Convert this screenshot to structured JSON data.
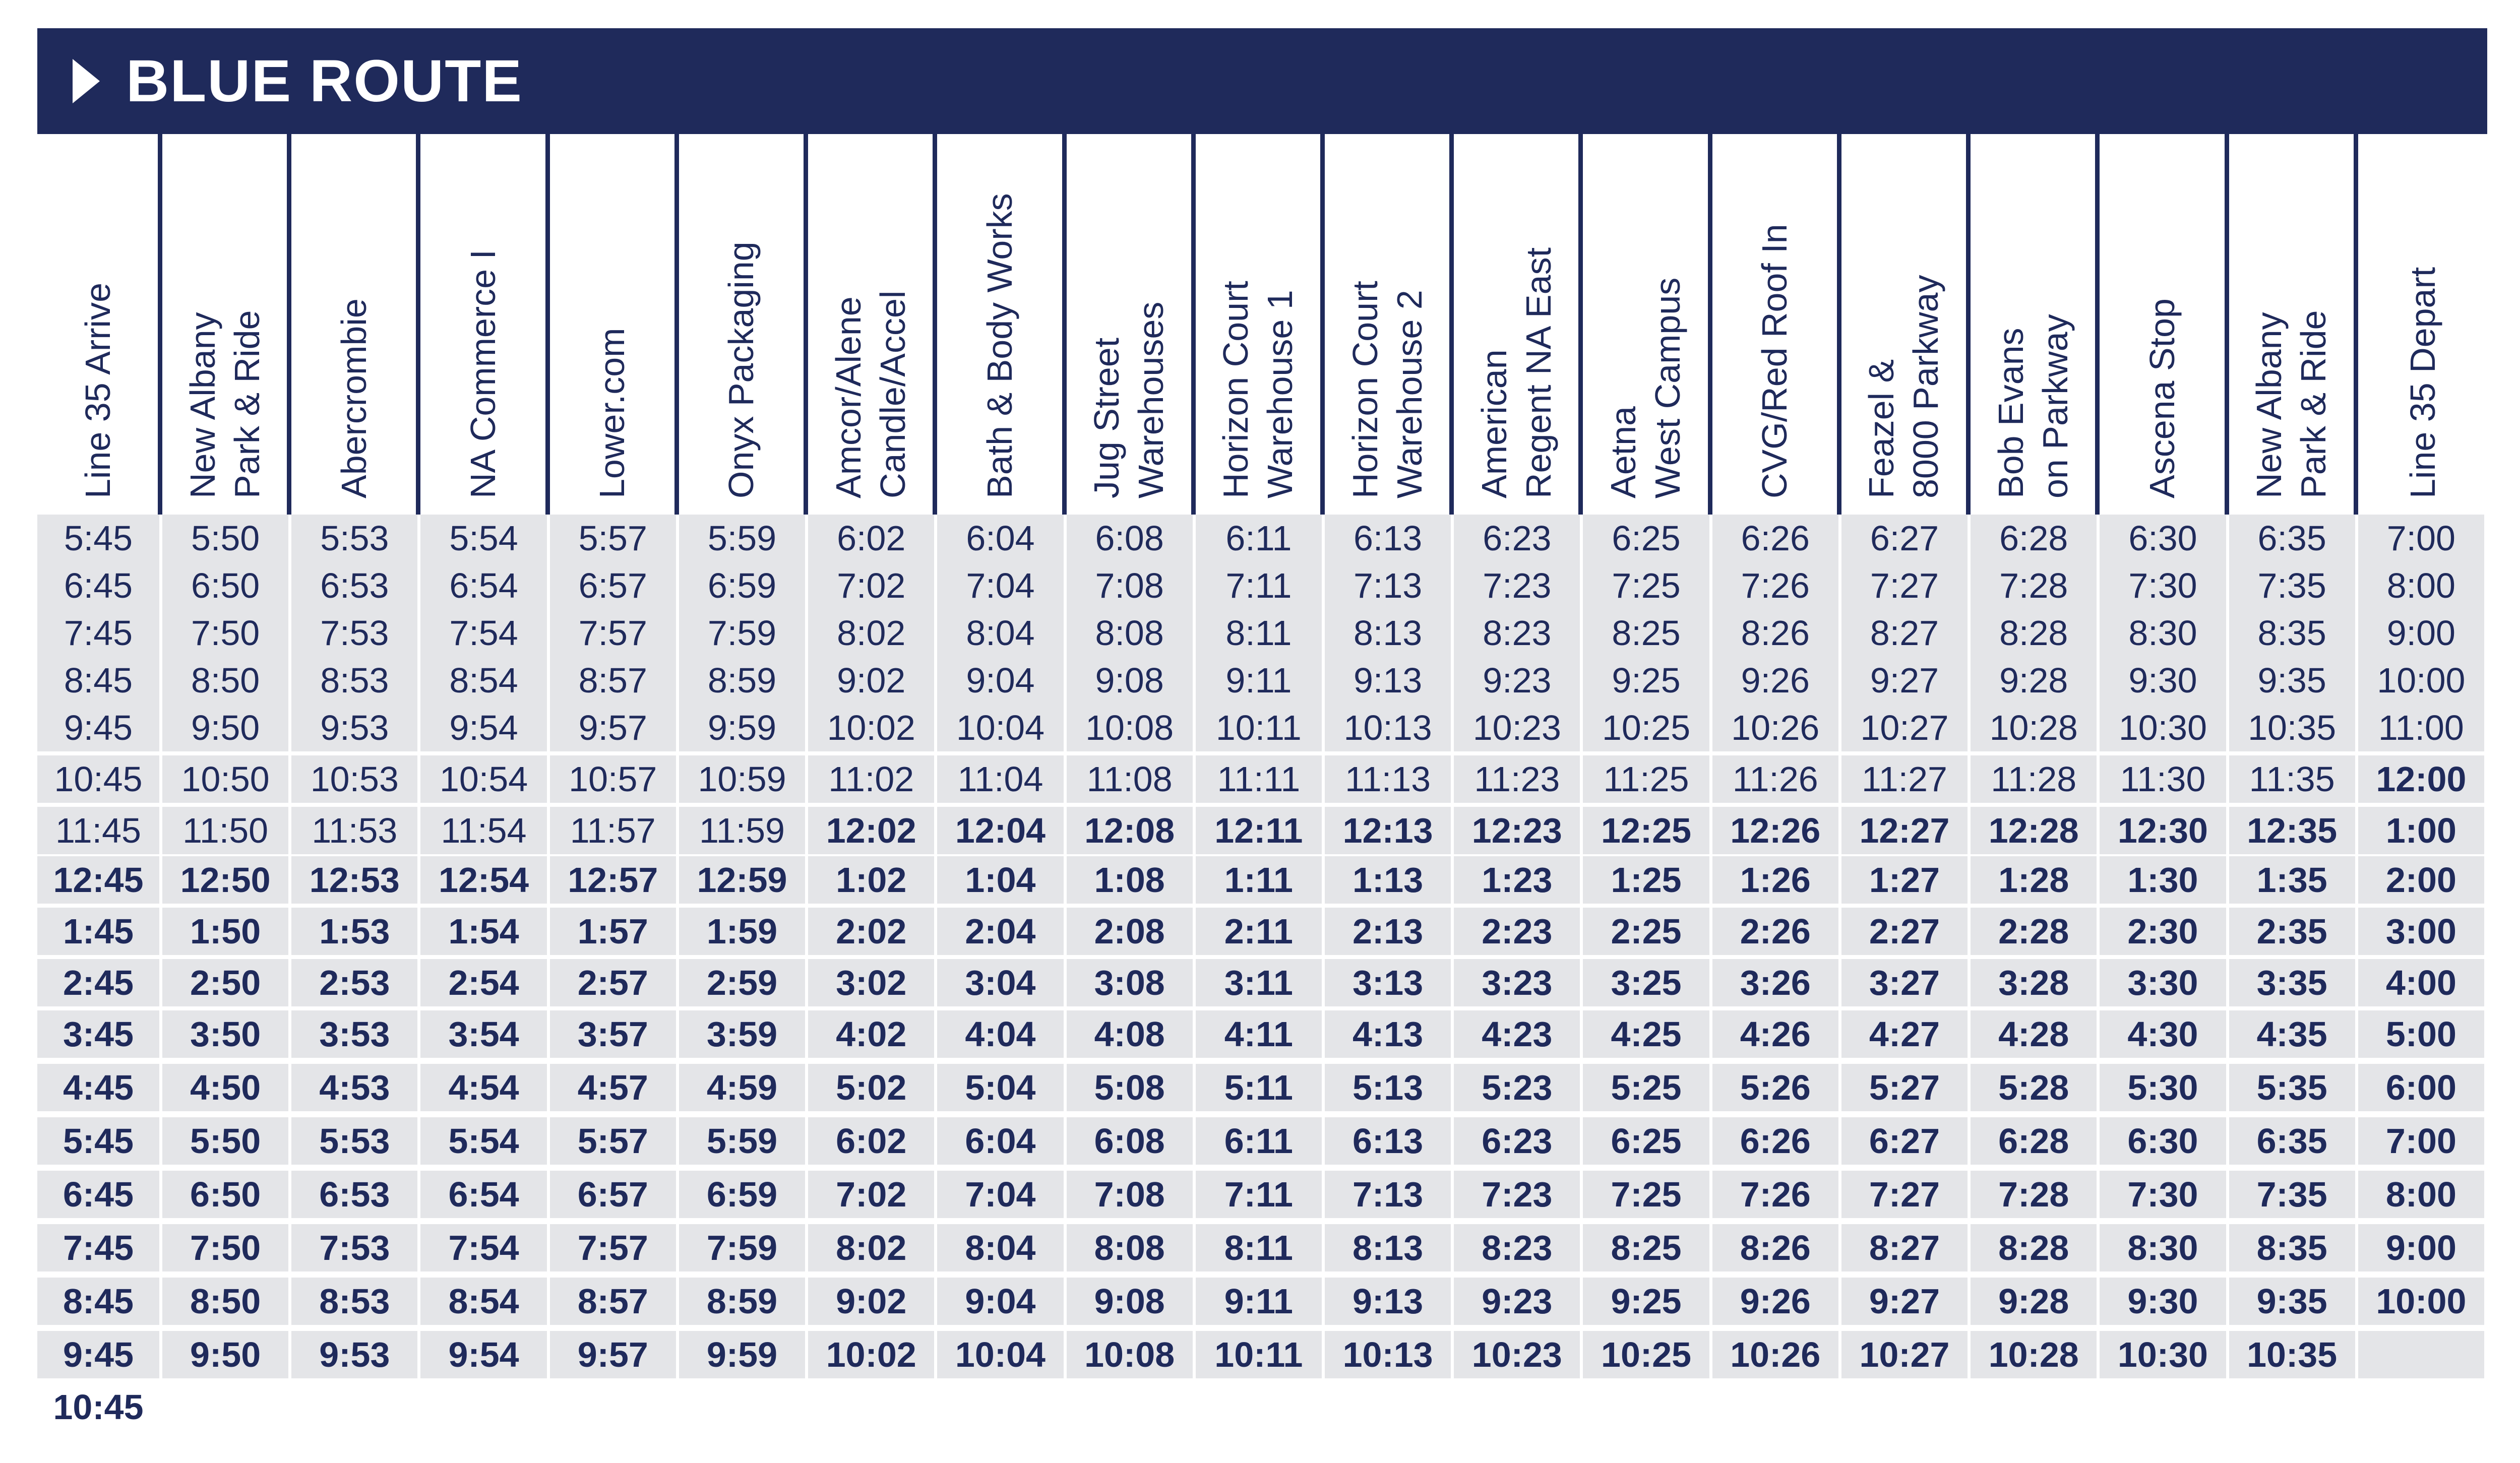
{
  "title": "BLUE ROUTE",
  "colors": {
    "navy": "#1f2a5b",
    "shade": "#e4e5e8"
  },
  "columns": [
    [
      "Line 35 Arrive"
    ],
    [
      "New Albany",
      "Park & Ride"
    ],
    [
      "Abercrombie"
    ],
    [
      "NA Commerce I"
    ],
    [
      "Lower.com"
    ],
    [
      "Onyx Packaging"
    ],
    [
      "Amcor/Alene",
      "Candle/Accel"
    ],
    [
      "Bath & Body Works"
    ],
    [
      "Jug Street",
      "Warehouses"
    ],
    [
      "Horizon Court",
      "Warehouse 1"
    ],
    [
      "Horizon Court",
      "Warehouse 2"
    ],
    [
      "American",
      "Regent NA East"
    ],
    [
      "Aetna",
      "West Campus"
    ],
    [
      "CVG/Red Roof In"
    ],
    [
      "Feazel &",
      "8000 Parkway"
    ],
    [
      "Bob Evans",
      "on Parkway"
    ],
    [
      "Ascena Stop"
    ],
    [
      "New Albany",
      "Park & Ride"
    ],
    [
      "Line 35 Depart"
    ]
  ],
  "rows": [
    [
      "5:45",
      "5:50",
      "5:53",
      "5:54",
      "5:57",
      "5:59",
      "6:02",
      "6:04",
      "6:08",
      "6:11",
      "6:13",
      "6:23",
      "6:25",
      "6:26",
      "6:27",
      "6:28",
      "6:30",
      "6:35",
      "7:00"
    ],
    [
      "6:45",
      "6:50",
      "6:53",
      "6:54",
      "6:57",
      "6:59",
      "7:02",
      "7:04",
      "7:08",
      "7:11",
      "7:13",
      "7:23",
      "7:25",
      "7:26",
      "7:27",
      "7:28",
      "7:30",
      "7:35",
      "8:00"
    ],
    [
      "7:45",
      "7:50",
      "7:53",
      "7:54",
      "7:57",
      "7:59",
      "8:02",
      "8:04",
      "8:08",
      "8:11",
      "8:13",
      "8:23",
      "8:25",
      "8:26",
      "8:27",
      "8:28",
      "8:30",
      "8:35",
      "9:00"
    ],
    [
      "8:45",
      "8:50",
      "8:53",
      "8:54",
      "8:57",
      "8:59",
      "9:02",
      "9:04",
      "9:08",
      "9:11",
      "9:13",
      "9:23",
      "9:25",
      "9:26",
      "9:27",
      "9:28",
      "9:30",
      "9:35",
      "10:00"
    ],
    [
      "9:45",
      "9:50",
      "9:53",
      "9:54",
      "9:57",
      "9:59",
      "10:02",
      "10:04",
      "10:08",
      "10:11",
      "10:13",
      "10:23",
      "10:25",
      "10:26",
      "10:27",
      "10:28",
      "10:30",
      "10:35",
      "11:00"
    ],
    [
      "10:45",
      "10:50",
      "10:53",
      "10:54",
      "10:57",
      "10:59",
      "11:02",
      "11:04",
      "11:08",
      "11:11",
      "11:13",
      "11:23",
      "11:25",
      "11:26",
      "11:27",
      "11:28",
      "11:30",
      "11:35",
      "12:00"
    ],
    [
      "11:45",
      "11:50",
      "11:53",
      "11:54",
      "11:57",
      "11:59",
      "12:02",
      "12:04",
      "12:08",
      "12:11",
      "12:13",
      "12:23",
      "12:25",
      "12:26",
      "12:27",
      "12:28",
      "12:30",
      "12:35",
      "1:00"
    ],
    [
      "12:45",
      "12:50",
      "12:53",
      "12:54",
      "12:57",
      "12:59",
      "1:02",
      "1:04",
      "1:08",
      "1:11",
      "1:13",
      "1:23",
      "1:25",
      "1:26",
      "1:27",
      "1:28",
      "1:30",
      "1:35",
      "2:00"
    ],
    [
      "1:45",
      "1:50",
      "1:53",
      "1:54",
      "1:57",
      "1:59",
      "2:02",
      "2:04",
      "2:08",
      "2:11",
      "2:13",
      "2:23",
      "2:25",
      "2:26",
      "2:27",
      "2:28",
      "2:30",
      "2:35",
      "3:00"
    ],
    [
      "2:45",
      "2:50",
      "2:53",
      "2:54",
      "2:57",
      "2:59",
      "3:02",
      "3:04",
      "3:08",
      "3:11",
      "3:13",
      "3:23",
      "3:25",
      "3:26",
      "3:27",
      "3:28",
      "3:30",
      "3:35",
      "4:00"
    ],
    [
      "3:45",
      "3:50",
      "3:53",
      "3:54",
      "3:57",
      "3:59",
      "4:02",
      "4:04",
      "4:08",
      "4:11",
      "4:13",
      "4:23",
      "4:25",
      "4:26",
      "4:27",
      "4:28",
      "4:30",
      "4:35",
      "5:00"
    ],
    [
      "4:45",
      "4:50",
      "4:53",
      "4:54",
      "4:57",
      "4:59",
      "5:02",
      "5:04",
      "5:08",
      "5:11",
      "5:13",
      "5:23",
      "5:25",
      "5:26",
      "5:27",
      "5:28",
      "5:30",
      "5:35",
      "6:00"
    ],
    [
      "5:45",
      "5:50",
      "5:53",
      "5:54",
      "5:57",
      "5:59",
      "6:02",
      "6:04",
      "6:08",
      "6:11",
      "6:13",
      "6:23",
      "6:25",
      "6:26",
      "6:27",
      "6:28",
      "6:30",
      "6:35",
      "7:00"
    ],
    [
      "6:45",
      "6:50",
      "6:53",
      "6:54",
      "6:57",
      "6:59",
      "7:02",
      "7:04",
      "7:08",
      "7:11",
      "7:13",
      "7:23",
      "7:25",
      "7:26",
      "7:27",
      "7:28",
      "7:30",
      "7:35",
      "8:00"
    ],
    [
      "7:45",
      "7:50",
      "7:53",
      "7:54",
      "7:57",
      "7:59",
      "8:02",
      "8:04",
      "8:08",
      "8:11",
      "8:13",
      "8:23",
      "8:25",
      "8:26",
      "8:27",
      "8:28",
      "8:30",
      "8:35",
      "9:00"
    ],
    [
      "8:45",
      "8:50",
      "8:53",
      "8:54",
      "8:57",
      "8:59",
      "9:02",
      "9:04",
      "9:08",
      "9:11",
      "9:13",
      "9:23",
      "9:25",
      "9:26",
      "9:27",
      "9:28",
      "9:30",
      "9:35",
      "10:00"
    ],
    [
      "9:45",
      "9:50",
      "9:53",
      "9:54",
      "9:57",
      "9:59",
      "10:02",
      "10:04",
      "10:08",
      "10:11",
      "10:13",
      "10:23",
      "10:25",
      "10:26",
      "10:27",
      "10:28",
      "10:30",
      "10:35",
      ""
    ],
    [
      "10:45",
      "",
      "",
      "",
      "",
      "",
      "",
      "",
      "",
      "",
      "",
      "",
      "",
      "",
      "",
      "",
      "",
      "",
      ""
    ]
  ],
  "bold_rows": [
    [
      false,
      false,
      false,
      false,
      false,
      false,
      false,
      false,
      false,
      false,
      false,
      false,
      false,
      false,
      false,
      false,
      false,
      false,
      false
    ],
    [
      false,
      false,
      false,
      false,
      false,
      false,
      false,
      false,
      false,
      false,
      false,
      false,
      false,
      false,
      false,
      false,
      false,
      false,
      false
    ],
    [
      false,
      false,
      false,
      false,
      false,
      false,
      false,
      false,
      false,
      false,
      false,
      false,
      false,
      false,
      false,
      false,
      false,
      false,
      false
    ],
    [
      false,
      false,
      false,
      false,
      false,
      false,
      false,
      false,
      false,
      false,
      false,
      false,
      false,
      false,
      false,
      false,
      false,
      false,
      false
    ],
    [
      false,
      false,
      false,
      false,
      false,
      false,
      false,
      false,
      false,
      false,
      false,
      false,
      false,
      false,
      false,
      false,
      false,
      false,
      false
    ],
    [
      false,
      false,
      false,
      false,
      false,
      false,
      false,
      false,
      false,
      false,
      false,
      false,
      false,
      false,
      false,
      false,
      false,
      false,
      true
    ],
    [
      false,
      false,
      false,
      false,
      false,
      false,
      true,
      true,
      true,
      true,
      true,
      true,
      true,
      true,
      true,
      true,
      true,
      true,
      true
    ],
    [
      true,
      true,
      true,
      true,
      true,
      true,
      true,
      true,
      true,
      true,
      true,
      true,
      true,
      true,
      true,
      true,
      true,
      true,
      true
    ],
    [
      true,
      true,
      true,
      true,
      true,
      true,
      true,
      true,
      true,
      true,
      true,
      true,
      true,
      true,
      true,
      true,
      true,
      true,
      true
    ],
    [
      true,
      true,
      true,
      true,
      true,
      true,
      true,
      true,
      true,
      true,
      true,
      true,
      true,
      true,
      true,
      true,
      true,
      true,
      true
    ],
    [
      true,
      true,
      true,
      true,
      true,
      true,
      true,
      true,
      true,
      true,
      true,
      true,
      true,
      true,
      true,
      true,
      true,
      true,
      true
    ],
    [
      true,
      true,
      true,
      true,
      true,
      true,
      true,
      true,
      true,
      true,
      true,
      true,
      true,
      true,
      true,
      true,
      true,
      true,
      true
    ],
    [
      true,
      true,
      true,
      true,
      true,
      true,
      true,
      true,
      true,
      true,
      true,
      true,
      true,
      true,
      true,
      true,
      true,
      true,
      true
    ],
    [
      true,
      true,
      true,
      true,
      true,
      true,
      true,
      true,
      true,
      true,
      true,
      true,
      true,
      true,
      true,
      true,
      true,
      true,
      true
    ],
    [
      true,
      true,
      true,
      true,
      true,
      true,
      true,
      true,
      true,
      true,
      true,
      true,
      true,
      true,
      true,
      true,
      true,
      true,
      true
    ],
    [
      true,
      true,
      true,
      true,
      true,
      true,
      true,
      true,
      true,
      true,
      true,
      true,
      true,
      true,
      true,
      true,
      true,
      true,
      true
    ],
    [
      true,
      true,
      true,
      true,
      true,
      true,
      true,
      true,
      true,
      true,
      true,
      true,
      true,
      true,
      true,
      true,
      true,
      true,
      true
    ],
    [
      true,
      true,
      true,
      true,
      true,
      true,
      true,
      true,
      true,
      true,
      true,
      true,
      true,
      true,
      true,
      true,
      true,
      true,
      true
    ]
  ]
}
